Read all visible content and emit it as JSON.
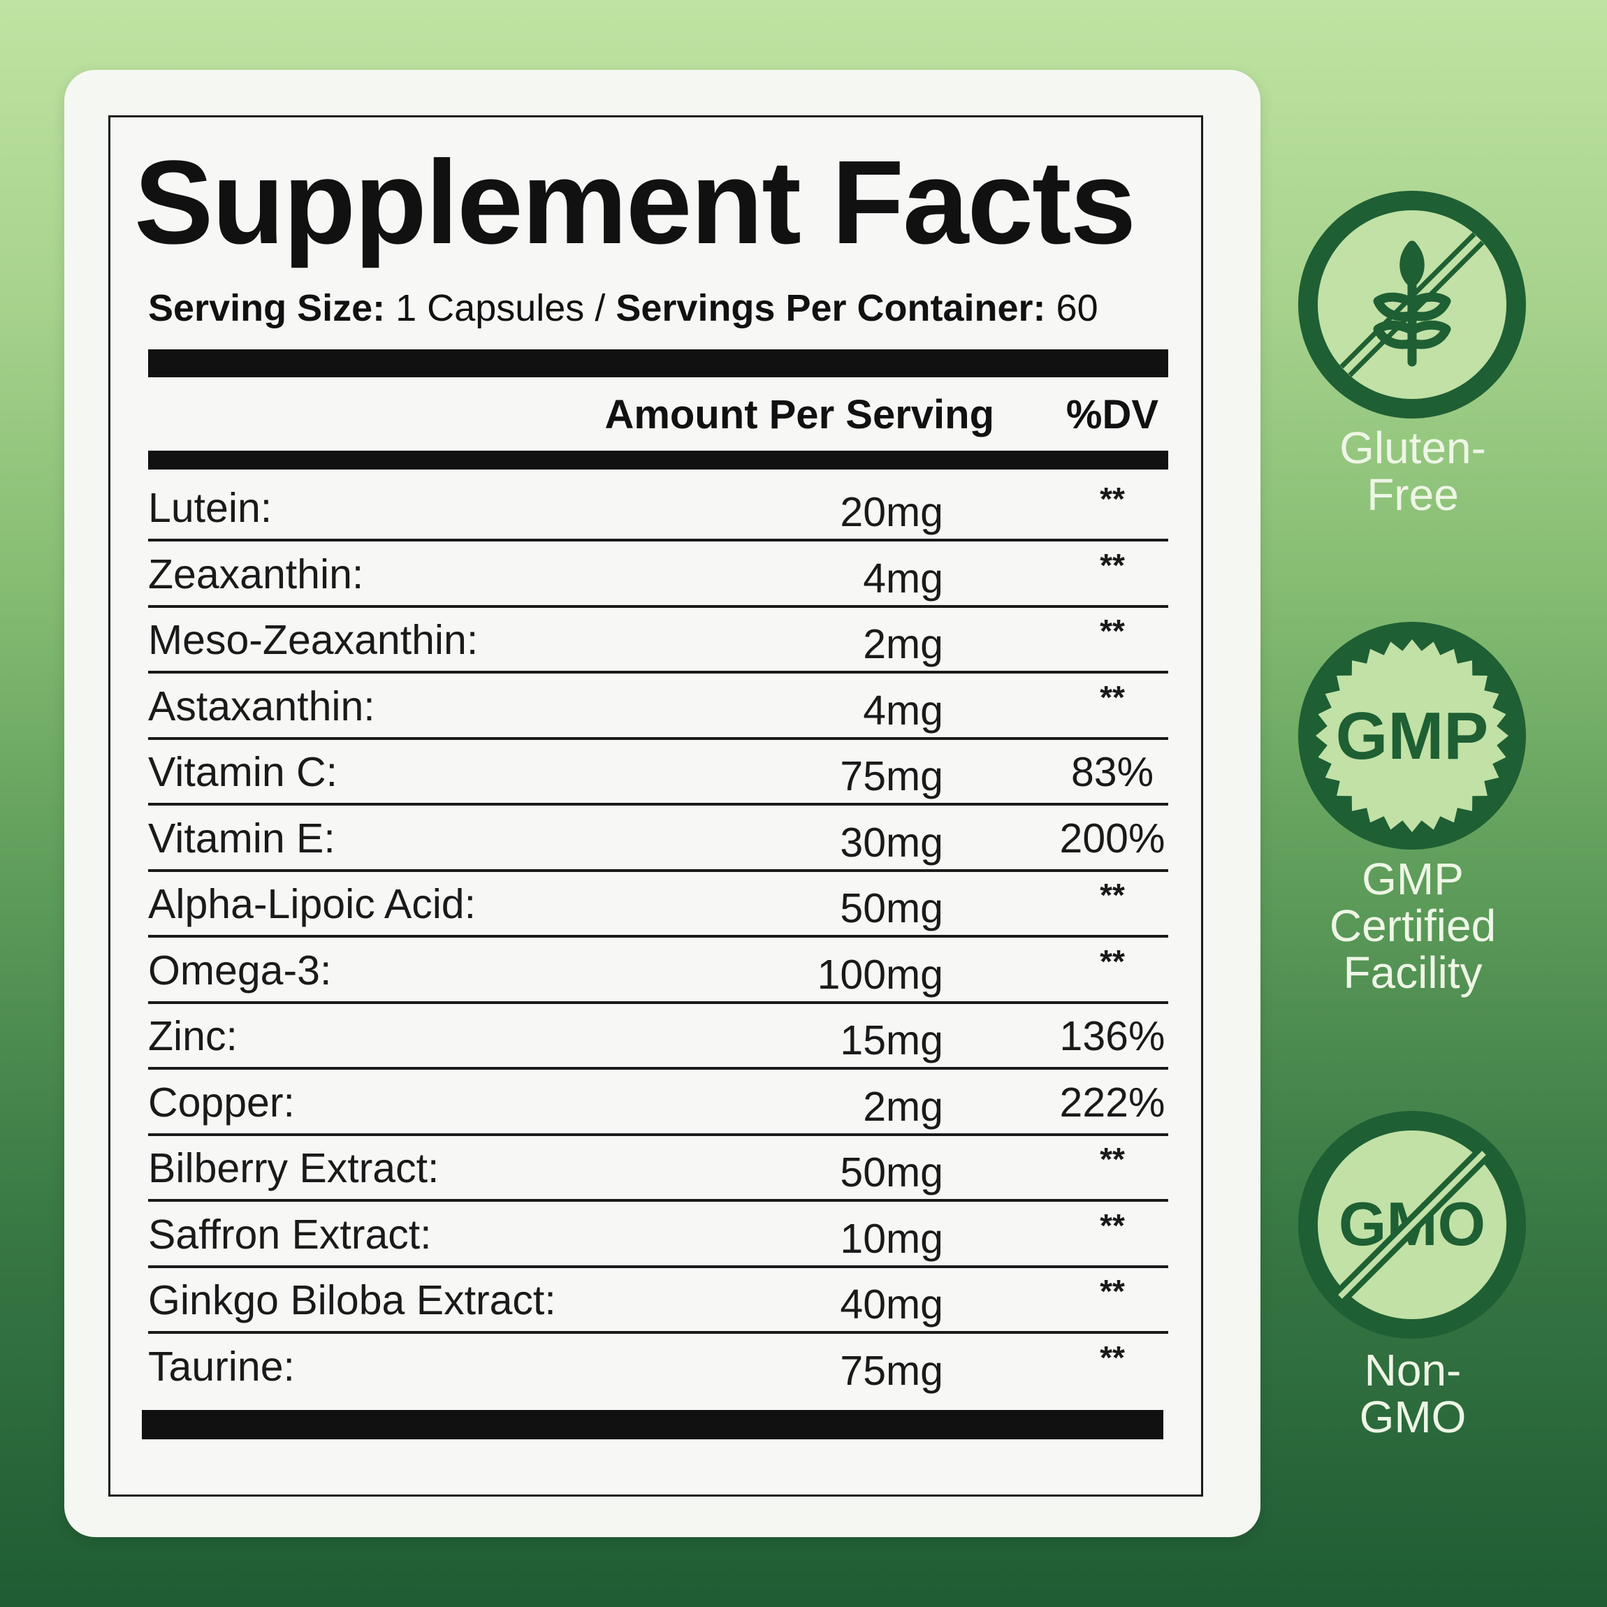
{
  "label": {
    "title": "Supplement Facts",
    "serving_size_label": "Serving Size:",
    "serving_size_value": "1 Capsules",
    "separator": "/",
    "servings_per_container_label": "Servings Per Container:",
    "servings_per_container_value": "60",
    "col_amount": "Amount Per Serving",
    "col_dv": "%DV",
    "rows": [
      {
        "name": "Lutein:",
        "amount": "20mg",
        "dv": "**"
      },
      {
        "name": "Zeaxanthin:",
        "amount": "4mg",
        "dv": "**"
      },
      {
        "name": "Meso-Zeaxanthin:",
        "amount": "2mg",
        "dv": "**"
      },
      {
        "name": "Astaxanthin:",
        "amount": "4mg",
        "dv": "**"
      },
      {
        "name": "Vitamin C:",
        "amount": "75mg",
        "dv": "83%"
      },
      {
        "name": "Vitamin E:",
        "amount": "30mg",
        "dv": "200%"
      },
      {
        "name": "Alpha-Lipoic Acid:",
        "amount": "50mg",
        "dv": "**"
      },
      {
        "name": "Omega-3:",
        "amount": "100mg",
        "dv": "**"
      },
      {
        "name": "Zinc:",
        "amount": "15mg",
        "dv": "136%"
      },
      {
        "name": "Copper:",
        "amount": "2mg",
        "dv": "222%"
      },
      {
        "name": "Bilberry Extract:",
        "amount": "50mg",
        "dv": "**"
      },
      {
        "name": "Saffron Extract:",
        "amount": "10mg",
        "dv": "**"
      },
      {
        "name": "Ginkgo Biloba Extract:",
        "amount": "40mg",
        "dv": "**"
      },
      {
        "name": "Taurine:",
        "amount": "75mg",
        "dv": "**"
      }
    ]
  },
  "badges": {
    "gluten": {
      "label_line1": "Gluten-",
      "label_line2": "Free",
      "icon": "wheat-crossed-icon"
    },
    "gmp": {
      "label_line1": "GMP",
      "label_line2": "Certified",
      "label_line3": "Facility",
      "seal_text": "GMP",
      "icon": "gmp-seal-icon"
    },
    "gmo": {
      "label_line1": "Non-",
      "label_line2": "GMO",
      "seal_text": "GMO",
      "icon": "gmo-crossed-icon"
    }
  },
  "colors": {
    "badge_dark": "#1f5f34",
    "badge_light": "#c2e1a6",
    "label_text": "#111111"
  }
}
